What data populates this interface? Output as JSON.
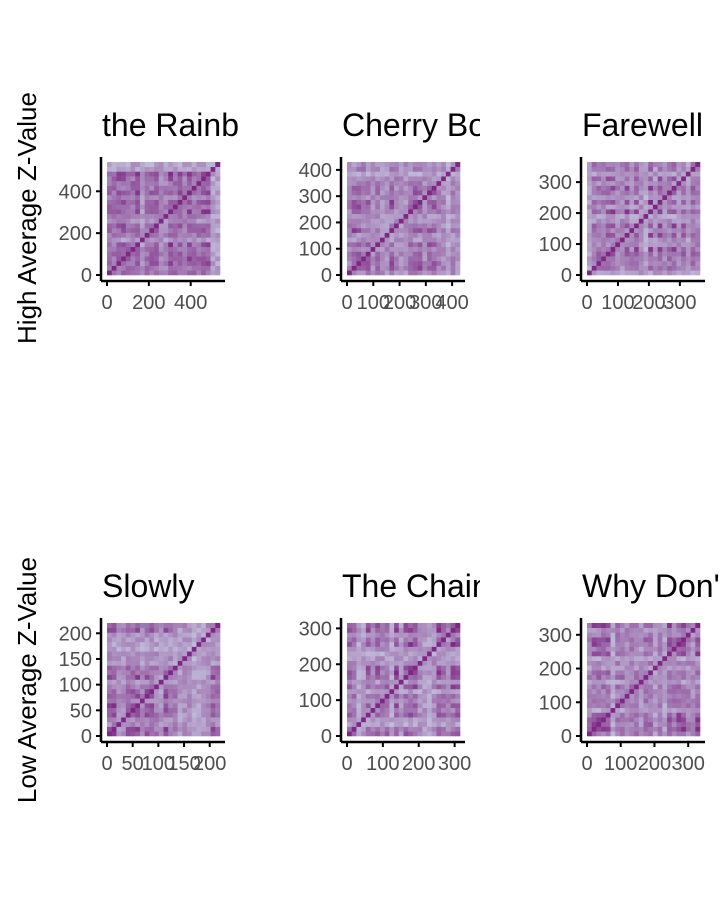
{
  "row_labels": [
    "High Average Z-Value",
    "Low Average Z-Value"
  ],
  "colors": {
    "low": "#7a1e7e",
    "high": "#d3e6f2",
    "axis": "#000000",
    "tick_text": "#4d4d4d"
  },
  "chart_data": [
    {
      "type": "heatmap",
      "title": "the Rainbow",
      "row": "High Average Z-Value",
      "n": 540,
      "xlim": [
        0,
        540
      ],
      "ylim": [
        0,
        540
      ],
      "x_ticks": [
        0,
        200,
        400
      ],
      "y_ticks": [
        0,
        200,
        400
      ],
      "x_tick_labels": [
        "0",
        "200",
        "400"
      ],
      "y_tick_labels": [
        "0",
        "200",
        "400"
      ],
      "matrix_description": "self-similarity matrix"
    },
    {
      "type": "heatmap",
      "title": "Cherry Bomb",
      "row": "High Average Z-Value",
      "n": 430,
      "xlim": [
        0,
        430
      ],
      "ylim": [
        0,
        430
      ],
      "x_ticks": [
        0,
        100,
        200,
        300,
        400
      ],
      "y_ticks": [
        0,
        100,
        200,
        300,
        400
      ],
      "x_tick_labels": [
        "0",
        "100",
        "200",
        "300",
        "400"
      ],
      "y_tick_labels": [
        "0",
        "100",
        "200",
        "300",
        "400"
      ]
    },
    {
      "type": "heatmap",
      "title": "Farewell",
      "row": "High Average Z-Value",
      "n": 365,
      "xlim": [
        0,
        365
      ],
      "ylim": [
        0,
        365
      ],
      "x_ticks": [
        0,
        100,
        200,
        300
      ],
      "y_ticks": [
        0,
        100,
        200,
        300
      ],
      "x_tick_labels": [
        "0",
        "100",
        "200",
        "300"
      ],
      "y_tick_labels": [
        "0",
        "100",
        "200",
        "300"
      ]
    },
    {
      "type": "heatmap",
      "title": "Slowly",
      "row": "Low Average Z-Value",
      "n": 220,
      "xlim": [
        0,
        220
      ],
      "ylim": [
        0,
        220
      ],
      "x_ticks": [
        0,
        50,
        100,
        150,
        200
      ],
      "y_ticks": [
        0,
        50,
        100,
        150,
        200
      ],
      "x_tick_labels": [
        "0",
        "50",
        "100",
        "150",
        "200"
      ],
      "y_tick_labels": [
        "0",
        "50",
        "100",
        "150",
        "200"
      ]
    },
    {
      "type": "heatmap",
      "title": "The Chain",
      "row": "Low Average Z-Value",
      "n": 315,
      "xlim": [
        0,
        315
      ],
      "ylim": [
        0,
        315
      ],
      "x_ticks": [
        0,
        100,
        200,
        300
      ],
      "y_ticks": [
        0,
        100,
        200,
        300
      ],
      "x_tick_labels": [
        "0",
        "100",
        "200",
        "300"
      ],
      "y_tick_labels": [
        "0",
        "100",
        "200",
        "300"
      ]
    },
    {
      "type": "heatmap",
      "title": "Why Don't",
      "row": "Low Average Z-Value",
      "n": 335,
      "xlim": [
        0,
        335
      ],
      "ylim": [
        0,
        335
      ],
      "x_ticks": [
        0,
        100,
        200,
        300
      ],
      "y_ticks": [
        0,
        100,
        200,
        300
      ],
      "x_tick_labels": [
        "0",
        "100",
        "200",
        "300"
      ],
      "y_tick_labels": [
        "0",
        "100",
        "200",
        "300"
      ]
    }
  ]
}
